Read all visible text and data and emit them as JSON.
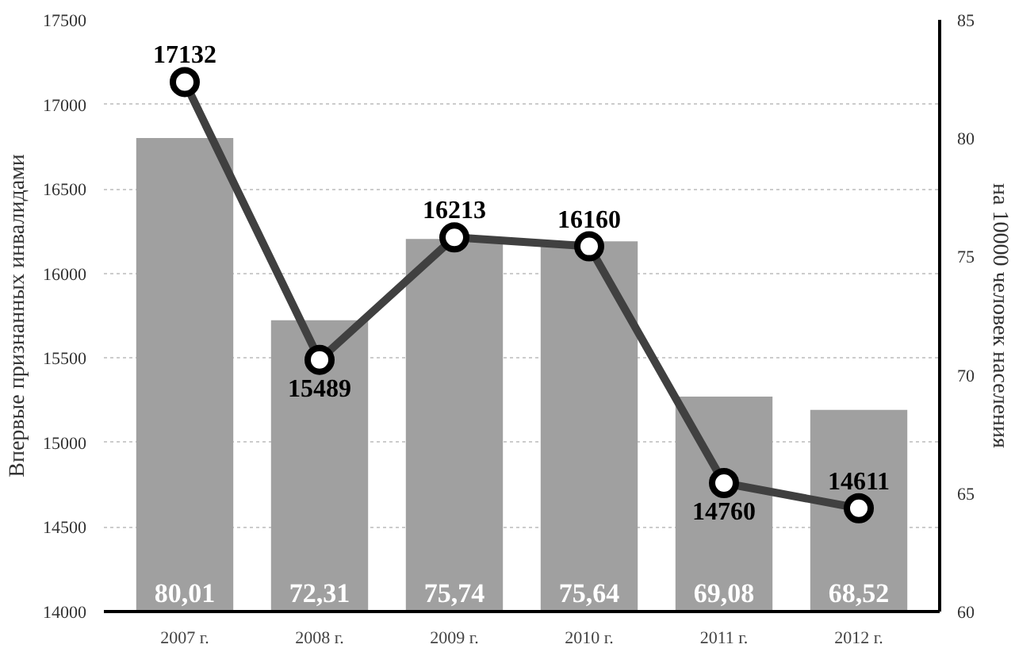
{
  "chart_data": {
    "type": "bar",
    "ylabel": "Впервые признанных инвалидами",
    "y2label": "на 10000 человек населения",
    "categories": [
      "2007 г.",
      "2008 г.",
      "2009 г.",
      "2010 г.",
      "2011 г.",
      "2012 г."
    ],
    "series": [
      {
        "axis": "y2",
        "color": "#a0a0a0",
        "values": [
          80.01,
          72.31,
          75.74,
          75.64,
          69.08,
          68.52
        ],
        "value_labels": [
          "80,01",
          "72,31",
          "75,74",
          "75,64",
          "69,08",
          "68,52"
        ]
      },
      {
        "type": "line",
        "axis": "y",
        "color": "#404040",
        "values": [
          17132,
          15489,
          16213,
          16160,
          14760,
          14611
        ],
        "value_labels": [
          "17132",
          "15489",
          "16213",
          "16160",
          "14760",
          "14611"
        ]
      }
    ],
    "ylim": [
      14000,
      17500
    ],
    "yticks": [
      14000,
      14500,
      15000,
      15500,
      16000,
      16500,
      17000,
      17500
    ],
    "y2lim": [
      60,
      85
    ],
    "y2ticks": [
      60,
      65,
      70,
      75,
      80,
      85
    ],
    "grid": "y",
    "marker": "circle",
    "line_style": "solid"
  }
}
